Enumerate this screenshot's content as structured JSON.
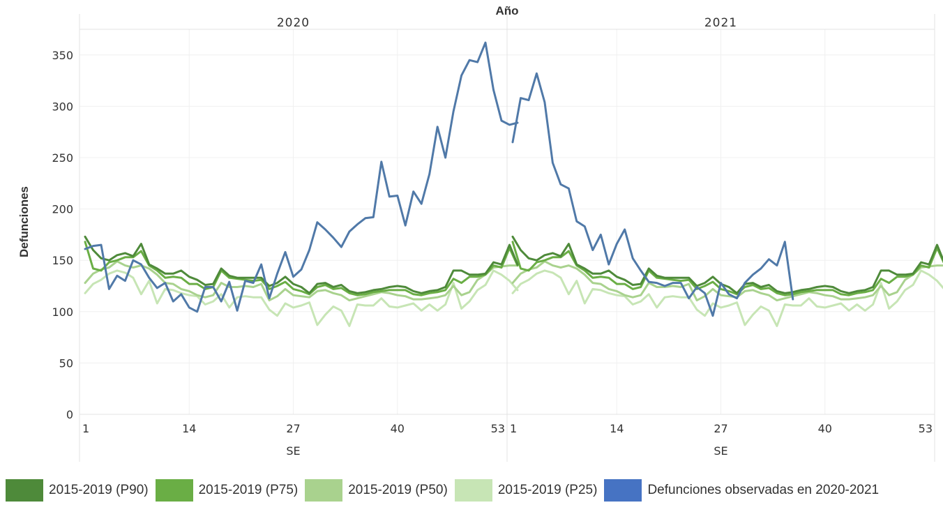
{
  "chart_data": {
    "type": "line",
    "title": "Año",
    "ylabel": "Defunciones",
    "xlabel": "SE",
    "ylim": [
      0,
      375
    ],
    "yticks": [
      0,
      50,
      100,
      150,
      200,
      250,
      300,
      350
    ],
    "xticks": [
      1,
      14,
      27,
      40,
      53
    ],
    "panels": [
      "2020",
      "2021"
    ],
    "grid": true,
    "legend_position": "bottom",
    "colors": {
      "p90": "#4e8a3a",
      "p75": "#6aae45",
      "p50": "#a9d28e",
      "p25": "#c7e5b5",
      "observed": "#4673c3",
      "observed_line": "#5079a8"
    },
    "series": [
      {
        "name": "2015-2019 (P90)",
        "key": "p90",
        "values": [
          173,
          160,
          152,
          150,
          155,
          157,
          154,
          166,
          146,
          142,
          137,
          137,
          140,
          134,
          131,
          126,
          127,
          142,
          135,
          133,
          133,
          133,
          133,
          125,
          128,
          134,
          127,
          124,
          118,
          127,
          128,
          124,
          126,
          120,
          118,
          119,
          121,
          122,
          124,
          125,
          124,
          120,
          118,
          120,
          121,
          124,
          140,
          140,
          136,
          136,
          137,
          148,
          146,
          165,
          146
        ]
      },
      {
        "name": "2015-2019 (P75)",
        "key": "p75",
        "values": [
          168,
          142,
          140,
          148,
          150,
          153,
          153,
          159,
          145,
          140,
          133,
          134,
          133,
          127,
          127,
          122,
          124,
          140,
          133,
          132,
          131,
          130,
          131,
          122,
          125,
          129,
          122,
          120,
          117,
          124,
          126,
          122,
          123,
          118,
          116,
          117,
          119,
          120,
          121,
          121,
          121,
          117,
          116,
          118,
          119,
          121,
          132,
          128,
          134,
          134,
          136,
          145,
          143,
          162,
          145
        ]
      },
      {
        "name": "2015-2019 (P50)",
        "key": "p50",
        "values": [
          128,
          137,
          141,
          143,
          149,
          145,
          143,
          145,
          142,
          136,
          128,
          127,
          122,
          120,
          116,
          114,
          116,
          128,
          124,
          124,
          125,
          124,
          127,
          111,
          115,
          122,
          116,
          115,
          114,
          120,
          121,
          118,
          116,
          111,
          113,
          115,
          117,
          119,
          118,
          116,
          115,
          112,
          112,
          113,
          114,
          116,
          125,
          116,
          119,
          131,
          136,
          143,
          144,
          145,
          145
        ]
      },
      {
        "name": "2015-2019 (P25)",
        "key": "p25",
        "values": [
          118,
          127,
          131,
          137,
          140,
          138,
          133,
          117,
          130,
          108,
          122,
          121,
          118,
          116,
          115,
          107,
          110,
          117,
          104,
          114,
          115,
          114,
          114,
          102,
          96,
          108,
          104,
          106,
          109,
          87,
          97,
          105,
          101,
          86,
          107,
          106,
          106,
          113,
          105,
          104,
          106,
          108,
          101,
          107,
          101,
          107,
          128,
          103,
          110,
          121,
          126,
          140,
          136,
          130,
          121
        ]
      },
      {
        "name": "Defunciones observadas en 2020-2021",
        "key": "observed",
        "segments": [
          {
            "panel": "2020",
            "week_start": 1,
            "values": [
              161,
              164,
              165,
              122,
              135,
              130,
              150,
              146,
              133,
              123,
              128,
              110,
              117,
              104,
              100,
              124,
              124,
              110,
              129,
              101,
              130,
              128,
              146,
              113,
              137,
              158,
              134,
              141,
              160,
              187,
              180,
              172,
              163,
              178,
              185,
              191,
              192,
              246,
              212,
              213,
              184,
              217,
              205,
              234,
              280,
              250,
              295,
              330,
              345,
              343,
              362,
              316,
              286,
              282,
              284
            ]
          },
          {
            "panel": "2021",
            "week_start": 1,
            "values": [
              265,
              308,
              306,
              332,
              304,
              245,
              224,
              220,
              188,
              183,
              160,
              175,
              146,
              166,
              180,
              152,
              140,
              129,
              128,
              125,
              128,
              128,
              113,
              124,
              118,
              96,
              128,
              117,
              113,
              128,
              136,
              142,
              151,
              145,
              168,
              112
            ]
          }
        ]
      }
    ]
  }
}
